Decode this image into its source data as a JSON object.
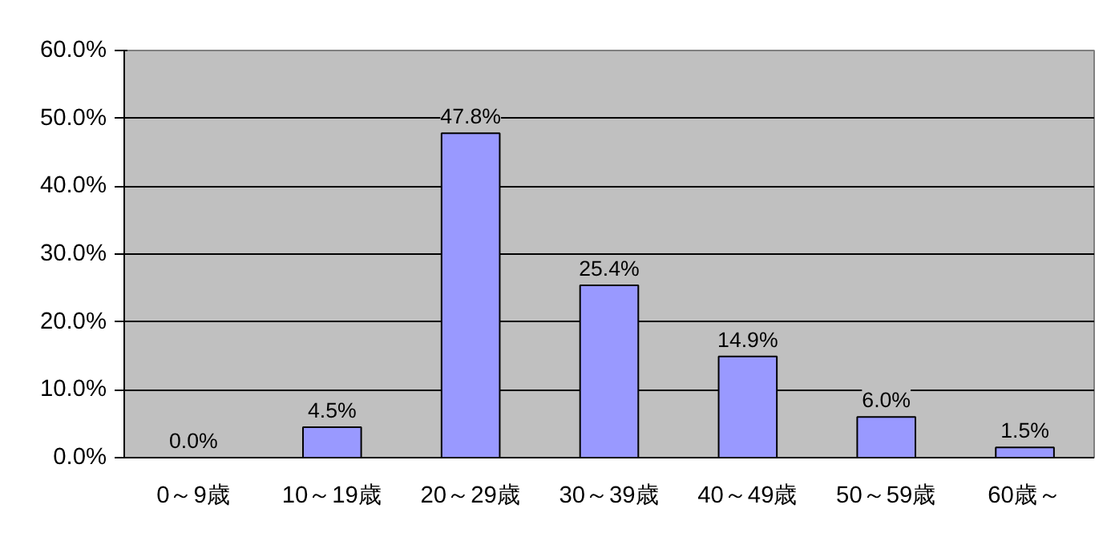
{
  "chart_data": {
    "type": "bar",
    "categories": [
      "0～9歳",
      "10～19歳",
      "20～29歳",
      "30～39歳",
      "40～49歳",
      "50～59歳",
      "60歳～"
    ],
    "values": [
      0.0,
      4.5,
      47.8,
      25.4,
      14.9,
      6.0,
      1.5
    ],
    "value_labels": [
      "0.0%",
      "4.5%",
      "47.8%",
      "25.4%",
      "14.9%",
      "6.0%",
      "1.5%"
    ],
    "color": "#9999ff",
    "ylim": [
      0,
      60
    ],
    "yticks": [
      {
        "value": 0,
        "label": "0.0%"
      },
      {
        "value": 10,
        "label": "10.0%"
      },
      {
        "value": 20,
        "label": "20.0%"
      },
      {
        "value": 30,
        "label": "30.0%"
      },
      {
        "value": 40,
        "label": "40.0%"
      },
      {
        "value": 50,
        "label": "50.0%"
      },
      {
        "value": 60,
        "label": "60.0%"
      }
    ],
    "grid": "y"
  }
}
